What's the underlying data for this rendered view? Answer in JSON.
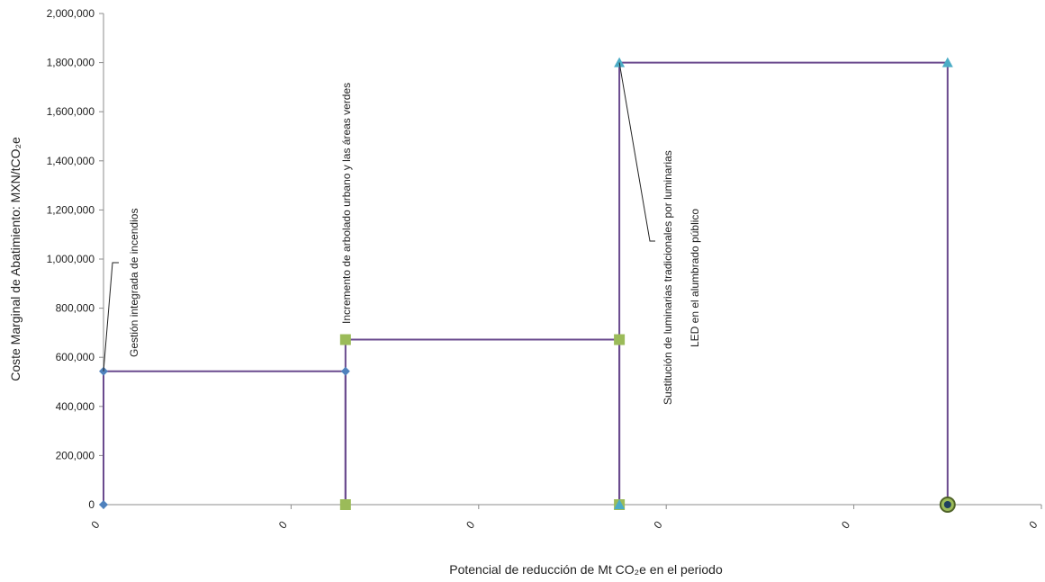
{
  "chart_data": {
    "type": "line",
    "xlabel": "Potencial de reducción de Mt CO₂e en el periodo",
    "ylabel": "Coste Marginal de Abatimiento: MXN/tCO₂e",
    "xlim": [
      0,
      5
    ],
    "ylim": [
      0,
      2000000
    ],
    "y_ticks": [
      0,
      200000,
      400000,
      600000,
      800000,
      1000000,
      1200000,
      1400000,
      1600000,
      1800000,
      2000000
    ],
    "y_tick_labels": [
      "0",
      "200,000",
      "400,000",
      "600,000",
      "800,000",
      "1,000,000",
      "1,200,000",
      "1,400,000",
      "1,600,000",
      "1,800,000",
      "2,000,000"
    ],
    "x_ticks": [
      0,
      1,
      2,
      3,
      4,
      5
    ],
    "x_tick_labels": [
      "0",
      "0",
      "0",
      "0",
      "0",
      "0"
    ],
    "legend": "none",
    "grid": false,
    "line_color": "#6a4a8e",
    "series": [
      {
        "marker": "diamond",
        "color": "#4f81bd",
        "points": [
          [
            0,
            0
          ],
          [
            0,
            543000
          ],
          [
            1.29,
            543000
          ],
          [
            1.29,
            0
          ]
        ]
      },
      {
        "marker": "square",
        "color": "#9bbb59",
        "points": [
          [
            1.29,
            0
          ],
          [
            1.29,
            672000
          ],
          [
            2.75,
            672000
          ],
          [
            2.75,
            0
          ]
        ]
      },
      {
        "marker": "triangle",
        "color": "#4bacc6",
        "points": [
          [
            2.75,
            0
          ],
          [
            2.75,
            1800000
          ],
          [
            4.5,
            1800000
          ],
          [
            4.5,
            0
          ]
        ]
      }
    ],
    "annotations": [
      {
        "text": "Gestión integrada de incendios"
      },
      {
        "text": "Incremento de arbolado urbano y las áreas verdes"
      },
      {
        "lines": [
          "Sustitución de luminarias tradicionales por luminarias",
          "LED en el alumbrado público"
        ]
      }
    ]
  }
}
